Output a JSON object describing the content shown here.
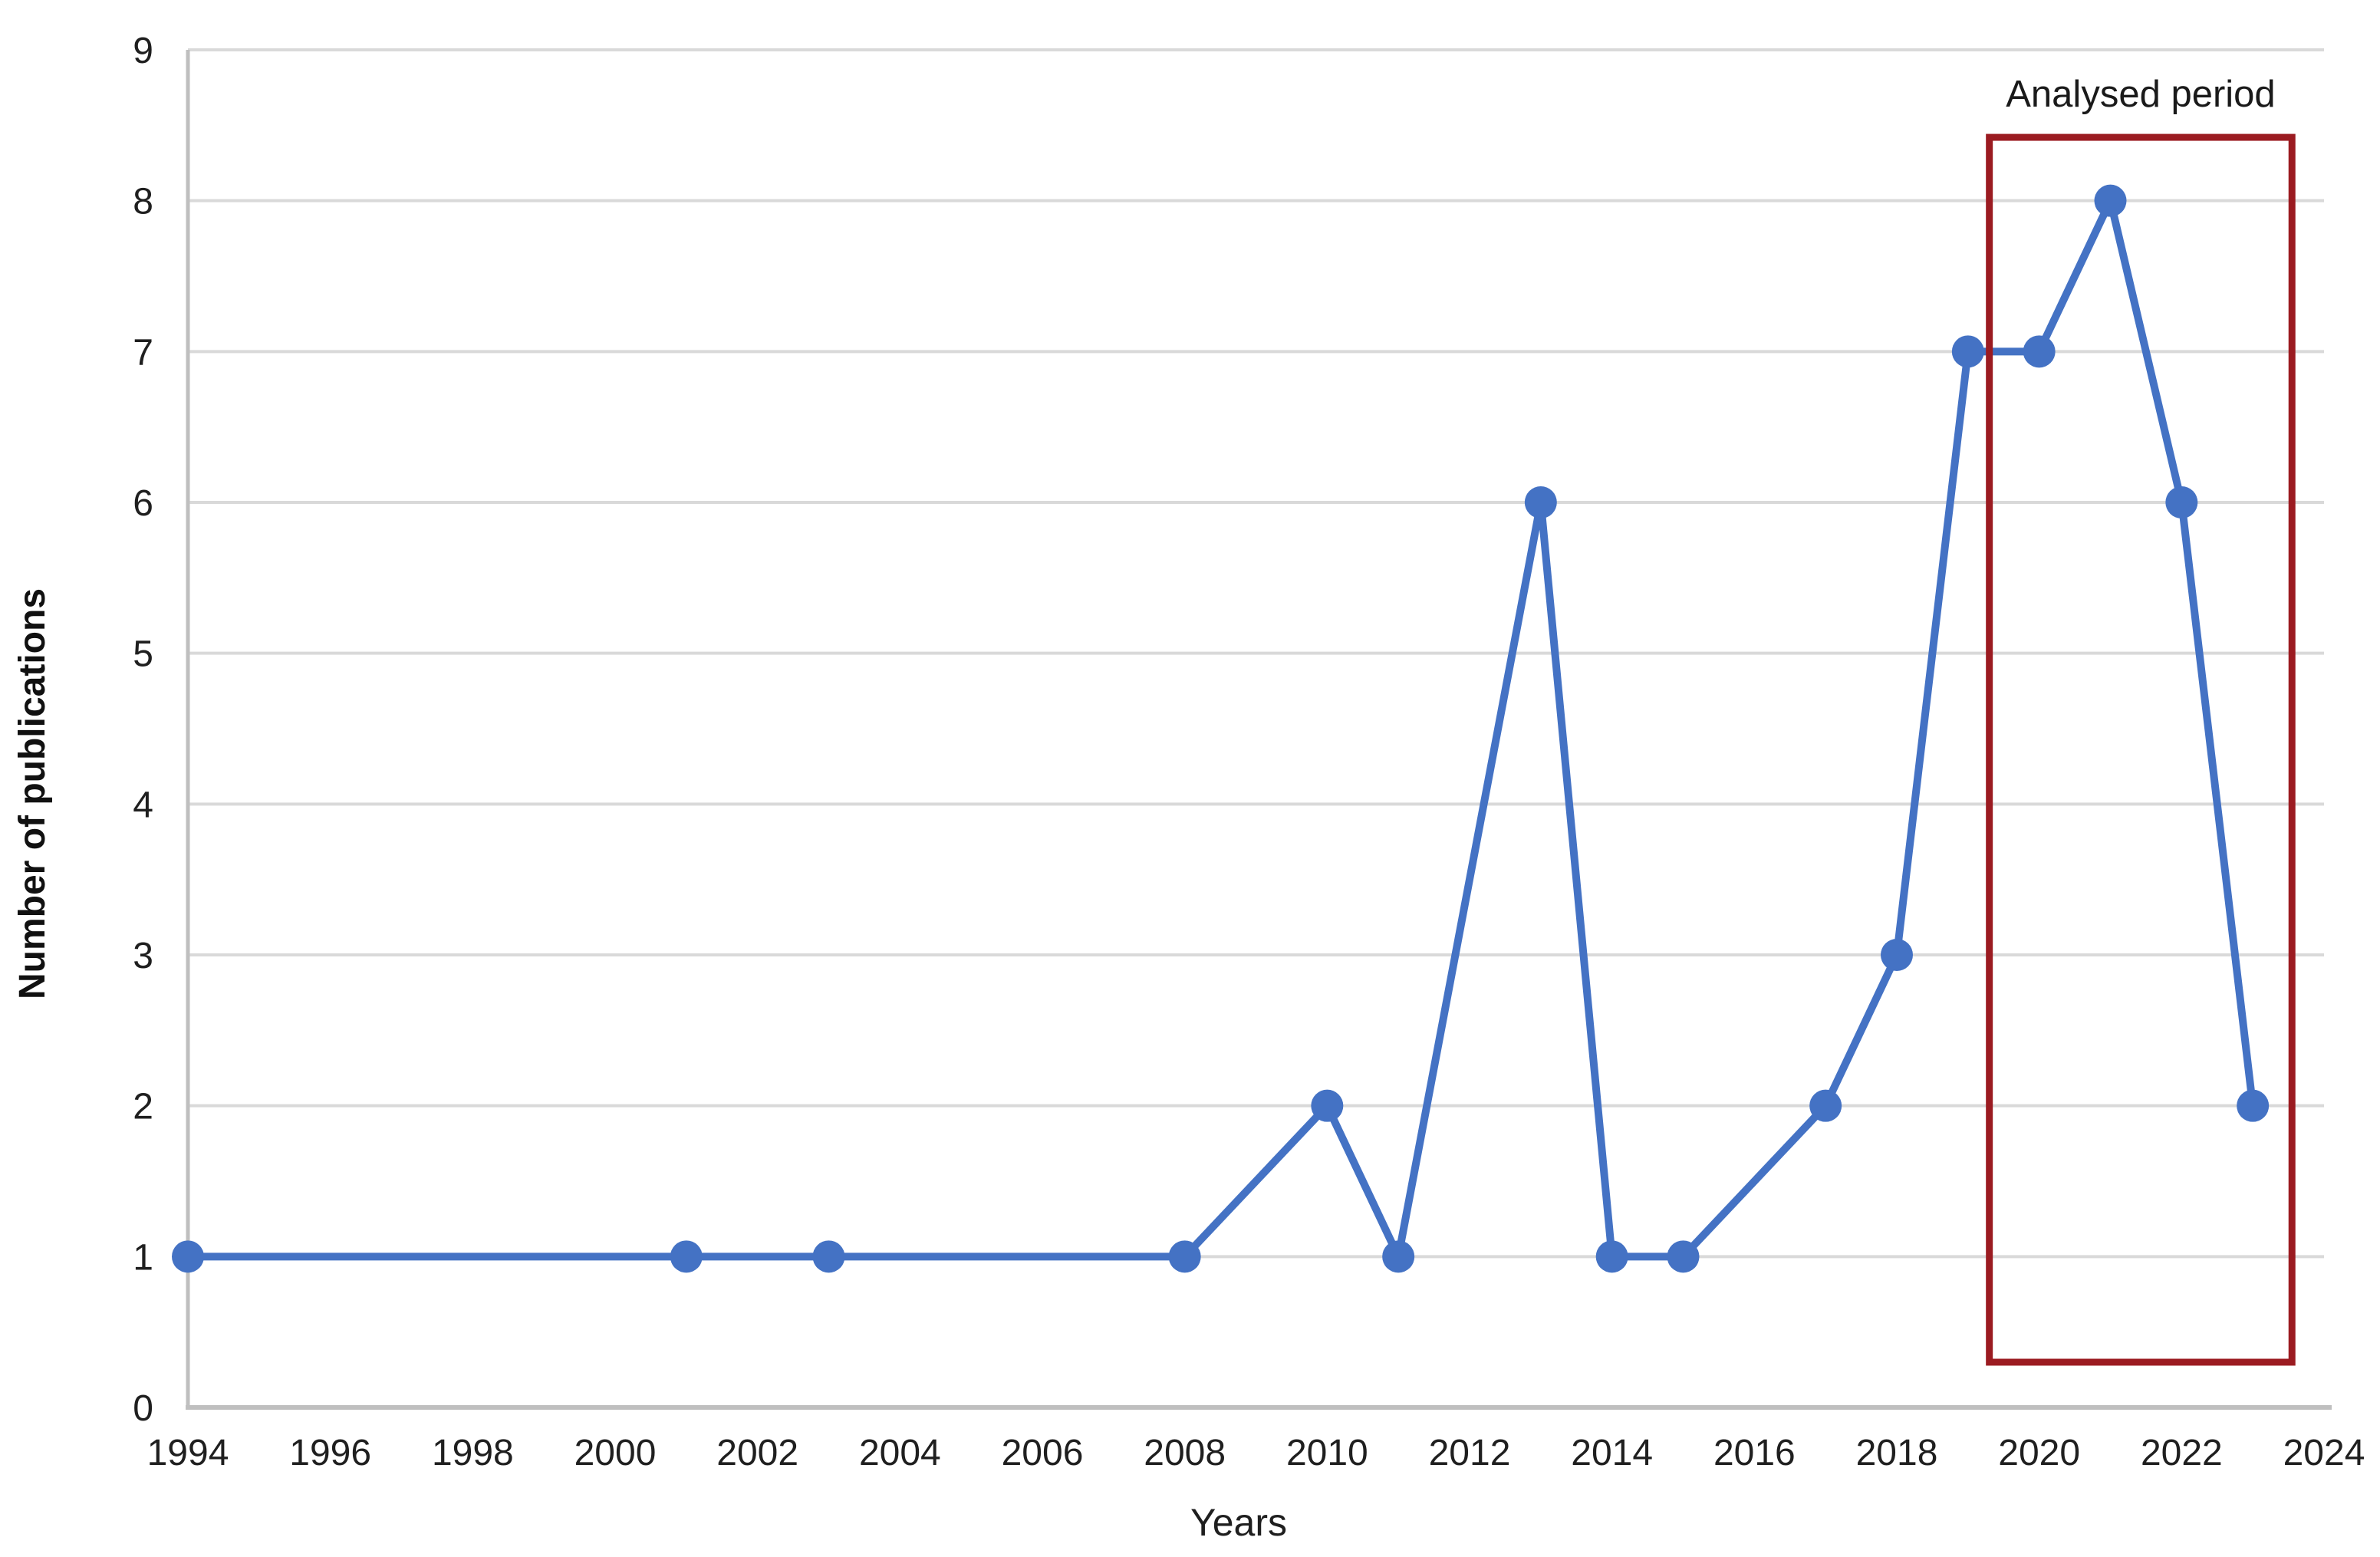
{
  "chart_data": {
    "type": "line",
    "title": "",
    "xlabel": "Years",
    "ylabel": "Number of publications",
    "series": [
      {
        "name": "Number of publications",
        "x": [
          1994,
          2001,
          2003,
          2008,
          2010,
          2011,
          2013,
          2014,
          2015,
          2017,
          2018,
          2019,
          2020,
          2021,
          2022,
          2023
        ],
        "values": [
          1,
          1,
          1,
          1,
          2,
          1,
          6,
          1,
          1,
          2,
          3,
          7,
          7,
          8,
          6,
          2
        ]
      }
    ],
    "x_axis": {
      "min": 1994,
      "max": 2024,
      "tick_step": 2,
      "tick_labels": [
        "1994",
        "1996",
        "1998",
        "2000",
        "2002",
        "2004",
        "2006",
        "2008",
        "2010",
        "2012",
        "2014",
        "2016",
        "2018",
        "2020",
        "2022",
        "2024"
      ]
    },
    "y_axis": {
      "min": 0,
      "max": 9,
      "tick_step": 1,
      "tick_labels": [
        "0",
        "1",
        "2",
        "3",
        "4",
        "5",
        "6",
        "7",
        "8",
        "9"
      ]
    },
    "grid": "horizontal",
    "legend": "none",
    "annotation": {
      "label": "Analysed period",
      "x_start": 2019.3,
      "x_end": 2023.55,
      "y_start": 0.3,
      "y_end": 8.42
    },
    "colors": {
      "line": "#4472C4",
      "marker": "#4472C4",
      "annotation_box": "#9B1B21",
      "gridline": "#D9D9D9",
      "axis_line": "#BFBFBF",
      "text": "#1f1f1f"
    }
  }
}
